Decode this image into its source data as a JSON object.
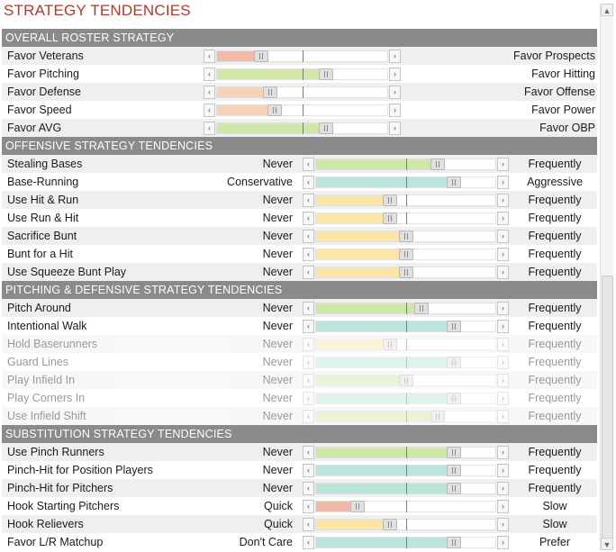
{
  "title": "STRATEGY TENDENCIES",
  "colors": {
    "red": "#f2b9a6",
    "green": "#cfe8a6",
    "orange": "#f7d2b4",
    "teal": "#b8e6dc",
    "yellow": "#fbe6a6"
  },
  "sections": [
    {
      "title": "OVERALL ROSTER STRATEGY",
      "kind": "roster",
      "rows": [
        {
          "left": "Favor Veterans",
          "right": "Favor Prospects",
          "value": 0.26,
          "color": "red"
        },
        {
          "left": "Favor Pitching",
          "right": "Favor Hitting",
          "value": 0.64,
          "color": "green"
        },
        {
          "left": "Favor Defense",
          "right": "Favor Offense",
          "value": 0.31,
          "color": "orange"
        },
        {
          "left": "Favor Speed",
          "right": "Favor Power",
          "value": 0.34,
          "color": "orange"
        },
        {
          "left": "Favor AVG",
          "right": "Favor OBP",
          "value": 0.64,
          "color": "green"
        }
      ]
    },
    {
      "title": "OFFENSIVE STRATEGY TENDENCIES",
      "kind": "tendency",
      "rows": [
        {
          "label": "Stealing Bases",
          "min": "Never",
          "max": "Frequently",
          "value": 0.68,
          "color": "green"
        },
        {
          "label": "Base-Running",
          "min": "Conservative",
          "max": "Aggressive",
          "value": 0.77,
          "color": "teal"
        },
        {
          "label": "Use Hit & Run",
          "min": "Never",
          "max": "Frequently",
          "value": 0.41,
          "color": "yellow"
        },
        {
          "label": "Use Run & Hit",
          "min": "Never",
          "max": "Frequently",
          "value": 0.41,
          "color": "yellow"
        },
        {
          "label": "Sacrifice Bunt",
          "min": "Never",
          "max": "Frequently",
          "value": 0.5,
          "color": "yellow"
        },
        {
          "label": "Bunt for a Hit",
          "min": "Never",
          "max": "Frequently",
          "value": 0.5,
          "color": "yellow"
        },
        {
          "label": "Use Squeeze Bunt Play",
          "min": "Never",
          "max": "Frequently",
          "value": 0.5,
          "color": "yellow"
        }
      ]
    },
    {
      "title": "PITCHING & DEFENSIVE STRATEGY TENDENCIES",
      "kind": "tendency",
      "rows": [
        {
          "label": "Pitch Around",
          "min": "Never",
          "max": "Frequently",
          "value": 0.59,
          "color": "green"
        },
        {
          "label": "Intentional Walk",
          "min": "Never",
          "max": "Frequently",
          "value": 0.77,
          "color": "teal"
        },
        {
          "label": "Hold Baserunners",
          "min": "Never",
          "max": "Frequently",
          "value": 0.41,
          "color": "yellow",
          "faded": true
        },
        {
          "label": "Guard Lines",
          "min": "Never",
          "max": "Frequently",
          "value": 0.77,
          "color": "teal",
          "faded": true
        },
        {
          "label": "Play Infield In",
          "min": "Never",
          "max": "Frequently",
          "value": 0.5,
          "color": "green",
          "faded": true
        },
        {
          "label": "Play Corners In",
          "min": "Never",
          "max": "Frequently",
          "value": 0.77,
          "color": "teal",
          "faded": true
        },
        {
          "label": "Use Infield Shift",
          "min": "Never",
          "max": "Frequently",
          "value": 0.68,
          "color": "green",
          "faded": true
        }
      ]
    },
    {
      "title": "SUBSTITUTION STRATEGY TENDENCIES",
      "kind": "tendency",
      "rows": [
        {
          "label": "Use Pinch Runners",
          "min": "Never",
          "max": "Frequently",
          "value": 0.77,
          "color": "green"
        },
        {
          "label": "Pinch-Hit for Position Players",
          "min": "Never",
          "max": "Frequently",
          "value": 0.77,
          "color": "teal"
        },
        {
          "label": "Pinch-Hit for Pitchers",
          "min": "Never",
          "max": "Frequently",
          "value": 0.77,
          "color": "teal"
        },
        {
          "label": "Hook Starting Pitchers",
          "min": "Quick",
          "max": "Slow",
          "value": 0.23,
          "color": "red"
        },
        {
          "label": "Hook Relievers",
          "min": "Quick",
          "max": "Slow",
          "value": 0.41,
          "color": "yellow"
        },
        {
          "label": "Favor L/R Matchup",
          "min": "Don't Care",
          "max": "Prefer",
          "value": 0.77,
          "color": "teal"
        }
      ]
    }
  ]
}
